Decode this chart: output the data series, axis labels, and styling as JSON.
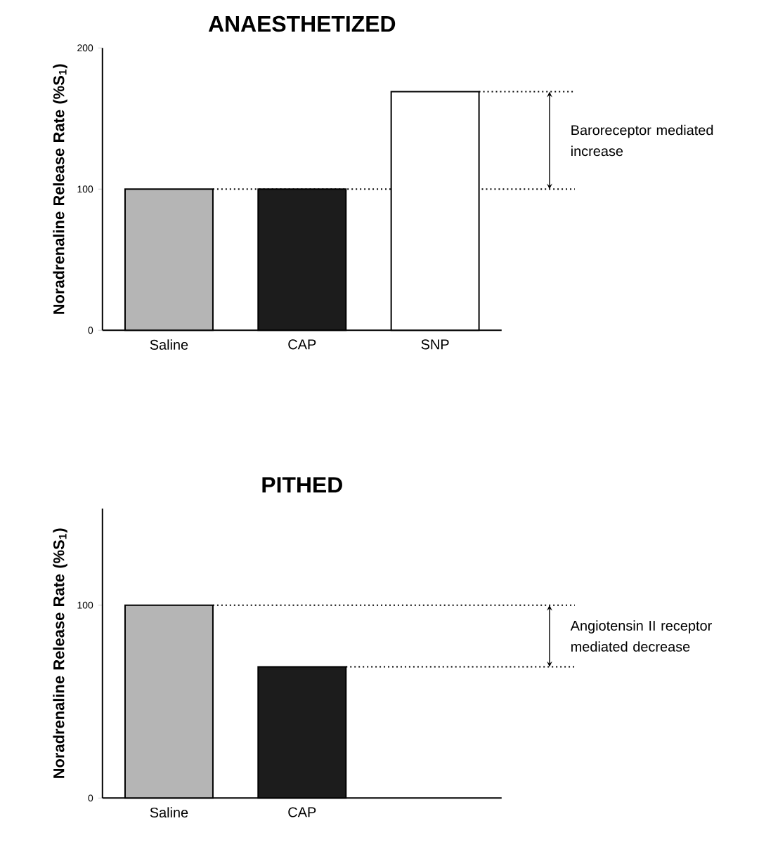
{
  "chart_data": [
    {
      "type": "bar",
      "title": "ANAESTHETIZED",
      "ylabel": "Noradrenaline Release Rate (%S$_{1}$)",
      "categories": [
        "Saline",
        "CAP",
        "SNP"
      ],
      "values": [
        100,
        100,
        169
      ],
      "colors": [
        "#b5b5b5",
        "#1c1c1c",
        "#ffffff"
      ],
      "ylim": [
        0,
        200
      ],
      "yticks": [
        0,
        100,
        200
      ],
      "ref_lines": [
        {
          "axis": "y",
          "value": 100,
          "line_style": "dotted"
        },
        {
          "axis": "y",
          "value": 169,
          "line_style": "dotted"
        }
      ],
      "annotations": [
        "Baroreceptor mediated increase"
      ]
    },
    {
      "type": "bar",
      "title": "PITHED",
      "ylabel": "Noradrenaline Release Rate (%S$_{1}$)",
      "categories": [
        "Saline",
        "CAP",
        null
      ],
      "values": [
        100,
        68,
        null
      ],
      "colors": [
        "#b5b5b5",
        "#1c1c1c",
        "#ffffff"
      ],
      "ylim": [
        0,
        150
      ],
      "yticks": [
        0,
        100
      ],
      "ref_lines": [
        {
          "axis": "y",
          "value": 100,
          "line_style": "dotted"
        },
        {
          "axis": "y",
          "value": 68,
          "line_style": "dotted"
        }
      ],
      "annotations": [
        "Angiotensin II receptor mediated decrease"
      ]
    }
  ]
}
